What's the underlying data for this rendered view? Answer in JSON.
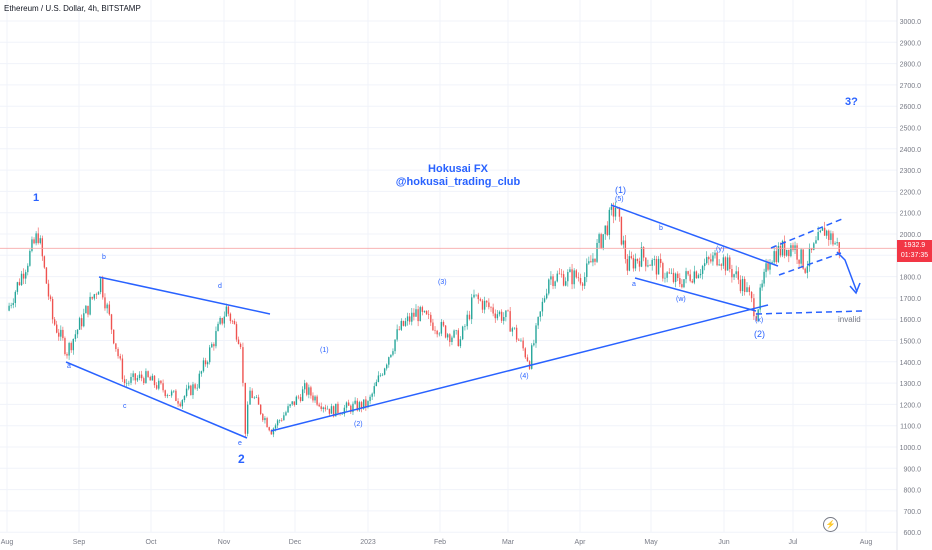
{
  "header": {
    "symbol": "Ethereum / U.S. Dollar, 4h, BITSTAMP"
  },
  "current_price": {
    "value": "1932.9",
    "countdown": "01:37:35"
  },
  "watermark": {
    "line1": "Hokusai FX",
    "line2": "@hokusai_trading_club"
  },
  "colors": {
    "up": "#26a69a",
    "down": "#ef5350",
    "annotation": "#2962ff",
    "price_line": "#f7a8a8",
    "axis_text": "#787b86"
  },
  "chart_data": {
    "type": "candlestick",
    "title": "Ethereum / U.S. Dollar, 4h, BITSTAMP",
    "x_ticks": [
      "Aug",
      "Sep",
      "Oct",
      "Nov",
      "Dec",
      "2023",
      "Feb",
      "Mar",
      "Apr",
      "May",
      "Jun",
      "Jul",
      "Aug"
    ],
    "y_ticks": [
      "3000.0",
      "2900.0",
      "2800.0",
      "2700.0",
      "2600.0",
      "2500.0",
      "2400.0",
      "2300.0",
      "2200.0",
      "2100.0",
      "2000.0",
      "1900.0",
      "1800.0",
      "1700.0",
      "1600.0",
      "1500.0",
      "1400.0",
      "1300.0",
      "1200.0",
      "1100.0",
      "1000.0",
      "900.0",
      "800.0",
      "700.0",
      "600.0"
    ],
    "ylim": [
      600,
      3000
    ],
    "log_scale": true,
    "price_path": [
      {
        "x": "Aug 1",
        "y": 1640
      },
      {
        "x": "Aug 14",
        "y": 2000
      },
      {
        "x": "Aug 20",
        "y": 1600
      },
      {
        "x": "Aug 26",
        "y": 1450
      },
      {
        "x": "Sep 10",
        "y": 1780
      },
      {
        "x": "Sep 20",
        "y": 1300
      },
      {
        "x": "Sep 28",
        "y": 1330
      },
      {
        "x": "Oct 13",
        "y": 1220
      },
      {
        "x": "Oct 20",
        "y": 1300
      },
      {
        "x": "Nov 2",
        "y": 1650
      },
      {
        "x": "Nov 8",
        "y": 1500
      },
      {
        "x": "Nov 10",
        "y": 1080
      },
      {
        "x": "Nov 12",
        "y": 1260
      },
      {
        "x": "Nov 21",
        "y": 1080
      },
      {
        "x": "Dec 5",
        "y": 1270
      },
      {
        "x": "Dec 16",
        "y": 1170
      },
      {
        "x": "Dec 31",
        "y": 1200
      },
      {
        "x": "Jan 14",
        "y": 1550
      },
      {
        "x": "Jan 21",
        "y": 1630
      },
      {
        "x": "Feb 10",
        "y": 1500
      },
      {
        "x": "Feb 16",
        "y": 1700
      },
      {
        "x": "Mar 1",
        "y": 1600
      },
      {
        "x": "Mar 10",
        "y": 1400
      },
      {
        "x": "Mar 18",
        "y": 1800
      },
      {
        "x": "Apr 3",
        "y": 1800
      },
      {
        "x": "Apr 16",
        "y": 2130
      },
      {
        "x": "Apr 21",
        "y": 1850
      },
      {
        "x": "Apr 27",
        "y": 1900
      },
      {
        "x": "May 12",
        "y": 1770
      },
      {
        "x": "May 29",
        "y": 1900
      },
      {
        "x": "Jun 10",
        "y": 1750
      },
      {
        "x": "Jun 15",
        "y": 1630
      },
      {
        "x": "Jun 21",
        "y": 1900
      },
      {
        "x": "Jul 1",
        "y": 1950
      },
      {
        "x": "Jul 6",
        "y": 1850
      },
      {
        "x": "Jul 14",
        "y": 2020
      },
      {
        "x": "Jul 20",
        "y": 1932.9
      }
    ],
    "annotations": [
      "1",
      "b",
      "d",
      "a",
      "c",
      "e",
      "2",
      "(1)",
      "(2)",
      "(3)",
      "(4)",
      "(1)",
      "(5)",
      "b",
      "a",
      "(w)",
      "(y)",
      "(x)",
      "(2)",
      "3?",
      "invalid"
    ]
  }
}
